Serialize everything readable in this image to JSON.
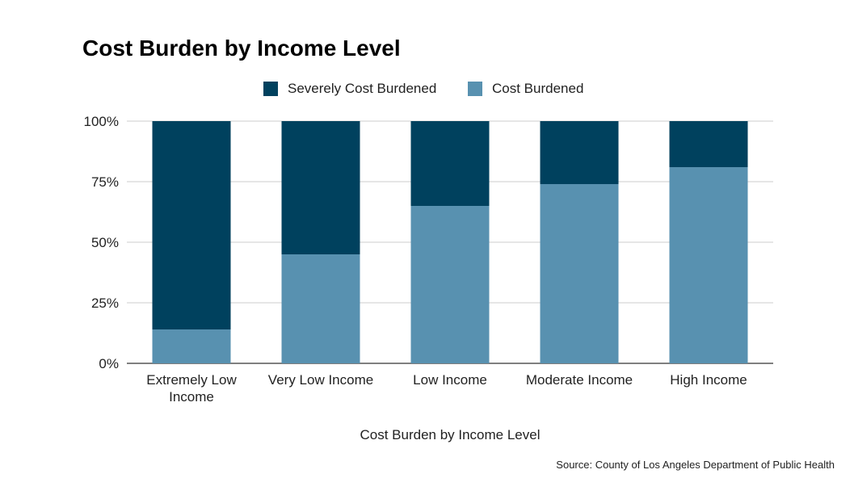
{
  "chart_data": {
    "type": "bar",
    "stacked": true,
    "title": "Cost Burden by Income Level",
    "xlabel": "Cost Burden by Income Level",
    "ylabel": "",
    "ylim": [
      0,
      100
    ],
    "yticks": [
      "0%",
      "25%",
      "50%",
      "75%",
      "100%"
    ],
    "categories": [
      "Extremely Low Income",
      "Very Low Income",
      "Low Income",
      "Moderate Income",
      "High Income"
    ],
    "series": [
      {
        "name": "Cost Burdened",
        "color": "#5891b0",
        "values": [
          14,
          45,
          65,
          74,
          81
        ]
      },
      {
        "name": "Severely Cost Burdened",
        "color": "#00415e",
        "values": [
          86,
          55,
          35,
          26,
          19
        ]
      }
    ],
    "legend": {
      "position": "top",
      "order": [
        "Severely Cost Burdened",
        "Cost Burdened"
      ]
    },
    "grid": true
  },
  "source": "Source: County of Los Angeles Department of Public Health"
}
